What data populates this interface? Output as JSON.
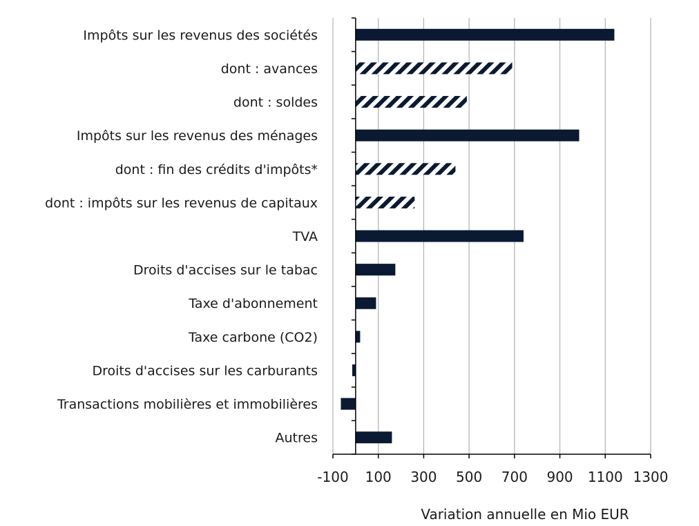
{
  "chart_data": {
    "type": "bar",
    "orientation": "horizontal",
    "xlabel": "Variation annuelle en Mio EUR",
    "xlim": [
      -100,
      1300
    ],
    "xticks": [
      -100,
      100,
      300,
      500,
      700,
      900,
      1100,
      1300
    ],
    "grid": true,
    "colors": {
      "solid": "#0a1a33",
      "hatched": "#0a1a33",
      "grid": "#b0b0b0",
      "axis": "#000000"
    },
    "categories": [
      {
        "label": "Impôts sur les revenus des sociétés",
        "value": 1140,
        "style": "solid"
      },
      {
        "label": "dont : avances",
        "value": 690,
        "style": "hatched"
      },
      {
        "label": "dont : soldes",
        "value": 490,
        "style": "hatched"
      },
      {
        "label": "Impôts sur les revenus des ménages",
        "value": 985,
        "style": "solid"
      },
      {
        "label": "dont : fin des crédits d'impôts*",
        "value": 440,
        "style": "hatched"
      },
      {
        "label": "dont : impôts sur les revenus de capitaux",
        "value": 260,
        "style": "hatched"
      },
      {
        "label": "TVA",
        "value": 740,
        "style": "solid"
      },
      {
        "label": "Droits d'accises sur le tabac",
        "value": 175,
        "style": "solid"
      },
      {
        "label": "Taxe d'abonnement",
        "value": 90,
        "style": "solid"
      },
      {
        "label": "Taxe carbone (CO2)",
        "value": 20,
        "style": "solid"
      },
      {
        "label": "Droits d'accises sur les carburants",
        "value": -15,
        "style": "solid"
      },
      {
        "label": "Transactions mobilières et immobilières",
        "value": -65,
        "style": "solid"
      },
      {
        "label": "Autres",
        "value": 160,
        "style": "solid"
      }
    ]
  }
}
